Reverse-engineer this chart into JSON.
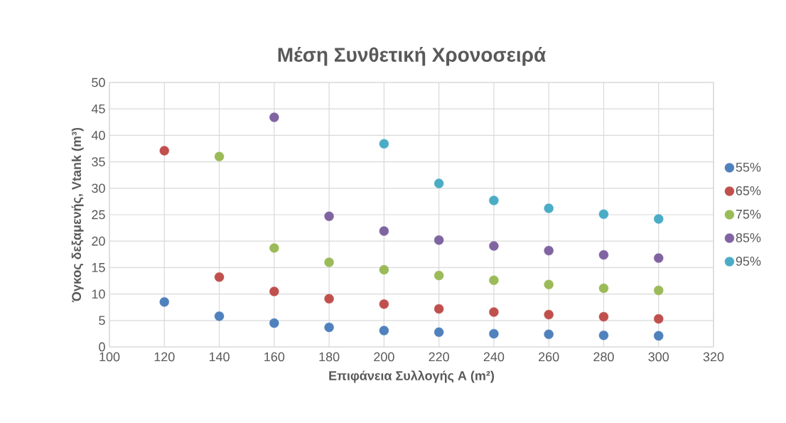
{
  "chart_data": {
    "type": "scatter",
    "title": "Μέση Συνθετική Χρονοσειρά",
    "xlabel": "Επιφάνεια Συλλογής A (m²)",
    "ylabel": "Όγκος δεξαμενής, Vtank (m³)",
    "xlim": [
      100,
      320
    ],
    "xticks": [
      100,
      120,
      140,
      160,
      180,
      200,
      220,
      240,
      260,
      280,
      300,
      320
    ],
    "ylim": [
      0,
      50
    ],
    "yticks": [
      0,
      5,
      10,
      15,
      20,
      25,
      30,
      35,
      40,
      45,
      50
    ],
    "grid": true,
    "legend": "right",
    "marker": "circle",
    "series": [
      {
        "name": "55%",
        "color": "#4f81bd",
        "x": [
          120,
          140,
          160,
          180,
          200,
          220,
          240,
          260,
          280,
          300
        ],
        "values": [
          8.5,
          5.8,
          4.5,
          3.7,
          3.1,
          2.8,
          2.5,
          2.4,
          2.2,
          2.1
        ]
      },
      {
        "name": "65%",
        "color": "#c0504d",
        "x": [
          120,
          140,
          160,
          180,
          200,
          220,
          240,
          260,
          280,
          300
        ],
        "values": [
          37.1,
          13.2,
          10.5,
          9.1,
          8.1,
          7.2,
          6.6,
          6.1,
          5.7,
          5.3
        ]
      },
      {
        "name": "75%",
        "color": "#9bbb59",
        "x": [
          140,
          160,
          180,
          200,
          220,
          240,
          260,
          280,
          300
        ],
        "values": [
          36.0,
          18.7,
          16.0,
          14.6,
          13.5,
          12.6,
          11.8,
          11.1,
          10.7
        ]
      },
      {
        "name": "85%",
        "color": "#8064a2",
        "x": [
          160,
          180,
          200,
          220,
          240,
          260,
          280,
          300
        ],
        "values": [
          43.4,
          24.7,
          21.9,
          20.2,
          19.1,
          18.2,
          17.4,
          16.8
        ]
      },
      {
        "name": "95%",
        "color": "#4bacc6",
        "x": [
          200,
          220,
          240,
          260,
          280,
          300
        ],
        "values": [
          38.4,
          30.9,
          27.7,
          26.2,
          25.1,
          24.2
        ]
      }
    ]
  }
}
